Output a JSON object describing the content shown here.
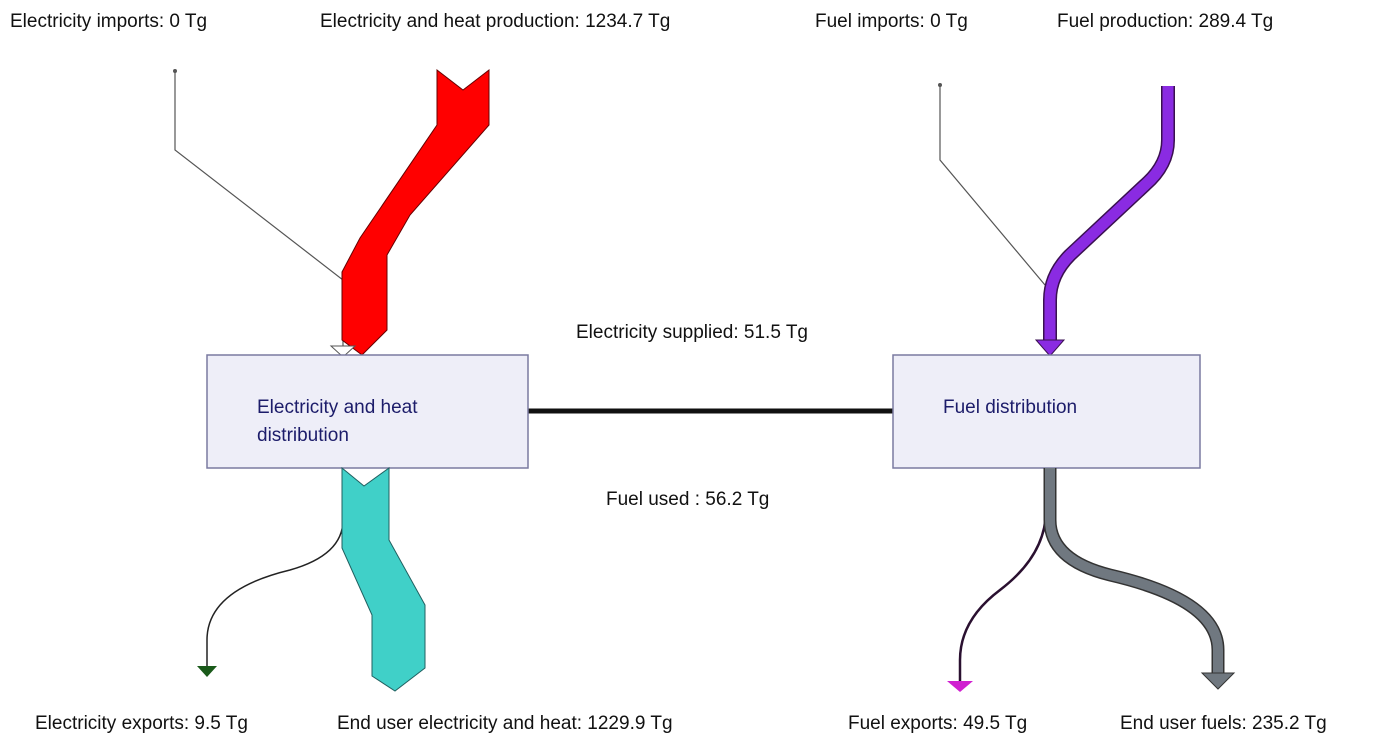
{
  "flows": {
    "electricity_imports": "Electricity imports: 0 Tg",
    "electricity_heat_production": "Electricity and heat production: 1234.7 Tg",
    "fuel_imports": "Fuel imports: 0 Tg",
    "fuel_production": "Fuel production: 289.4 Tg",
    "electricity_supplied": "Electricity supplied: 51.5 Tg",
    "fuel_used": "Fuel used : 56.2 Tg",
    "electricity_exports": "Electricity exports: 9.5 Tg",
    "end_user_electricity_heat": "End user electricity and heat: 1229.9 Tg",
    "fuel_exports": "Fuel exports: 49.5 Tg",
    "end_user_fuels": "End user fuels: 235.2 Tg"
  },
  "nodes": [
    {
      "label_lines": [
        "Electricity and heat",
        "distribution"
      ]
    },
    {
      "label_lines": [
        "Fuel distribution"
      ]
    }
  ]
}
